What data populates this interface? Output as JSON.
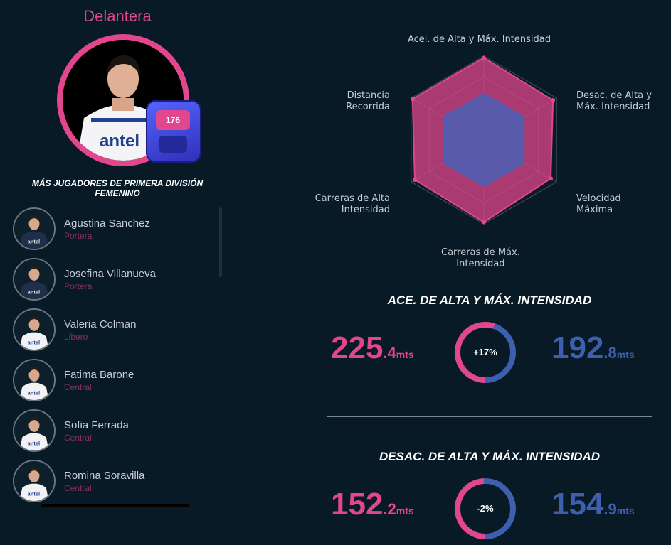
{
  "hero": {
    "position": "Delantera",
    "device_number": "176"
  },
  "more_players": {
    "title_line1": "MÁS JUGADORES DE PRIMERA DIVISIÓN",
    "title_line2": "FEMENINO",
    "items": [
      {
        "name": "Agustina Sanchez",
        "role": "Portera",
        "shirt": "dark"
      },
      {
        "name": "Josefina Villanueva",
        "role": "Portera",
        "shirt": "dark"
      },
      {
        "name": "Valeria Colman",
        "role": "Libero",
        "shirt": "white"
      },
      {
        "name": "Fatima Barone",
        "role": "Central",
        "shirt": "white"
      },
      {
        "name": "Sofia Ferrada",
        "role": "Central",
        "shirt": "white"
      },
      {
        "name": "Romina Soravilla",
        "role": "Central",
        "shirt": "white"
      }
    ]
  },
  "radar": {
    "labels": {
      "top_line1": "Acel. de Alta y Máx. Intensidad",
      "topright_line1": "Desac. de Alta y",
      "topright_line2": "Máx. Intensidad",
      "bottomright_line1": "Velocidad",
      "bottomright_line2": "Máxima",
      "bottom_line1": "Carreras de Máx.",
      "bottom_line2": "Intensidad",
      "bottomleft_line1": "Carreras de Alta",
      "bottomleft_line2": "Intensidad",
      "topleft_line1": "Distancia",
      "topleft_line2": "Recorrida"
    },
    "series_player": [
      0.98,
      0.95,
      0.92,
      0.98,
      0.95,
      0.98
    ],
    "series_average": [
      0.55,
      0.55,
      0.55,
      0.55,
      0.55,
      0.55
    ],
    "colors": {
      "player": "#e2468c",
      "average": "#4b5fb5"
    }
  },
  "metrics": [
    {
      "title": "ACE. DE ALTA Y MÁX. INTENSIDAD",
      "player_int": "225",
      "player_dec": ".4",
      "player_unit": "mts",
      "diff": "+17%",
      "ring_pink_fraction": 0.55,
      "avg_int": "192",
      "avg_dec": ".8",
      "avg_unit": "mts"
    },
    {
      "title": "DESAC. DE ALTA Y MÁX. INTENSIDAD",
      "player_int": "152",
      "player_dec": ".2",
      "player_unit": "mts",
      "diff": "-2%",
      "ring_pink_fraction": 0.49,
      "avg_int": "154",
      "avg_dec": ".9",
      "avg_unit": "mts"
    }
  ]
}
